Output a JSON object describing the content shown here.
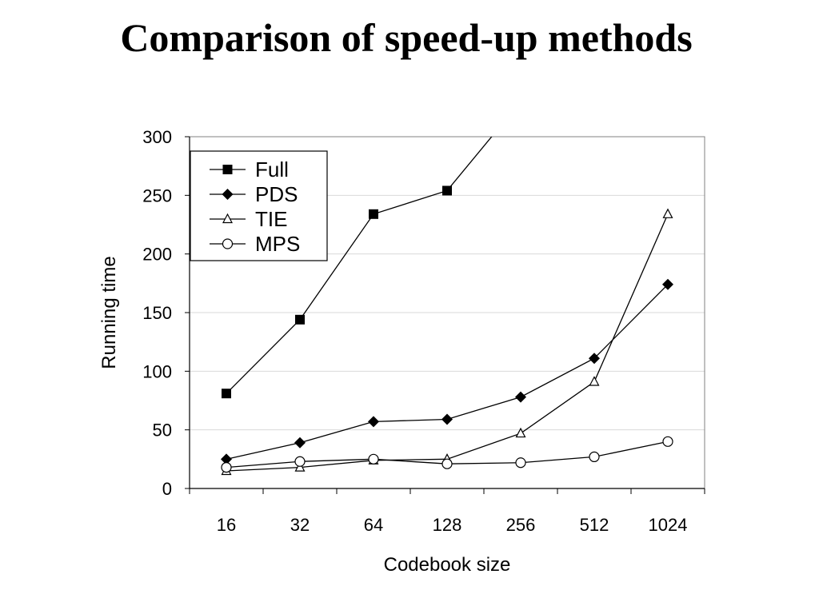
{
  "slide": {
    "title": "Comparison of speed-up methods"
  },
  "chart_data": {
    "type": "line",
    "title": "",
    "xlabel": "Codebook size",
    "ylabel": "Running time",
    "categories": [
      "16",
      "32",
      "64",
      "128",
      "256",
      "512",
      "1024"
    ],
    "ylim": [
      0,
      300
    ],
    "yticks": [
      "0",
      "50",
      "100",
      "150",
      "200",
      "250",
      "300"
    ],
    "grid": true,
    "legend_position": "top-left",
    "series": [
      {
        "name": "Full",
        "marker": "filled-square",
        "values": [
          81,
          144,
          234,
          254,
          330,
          null,
          null
        ]
      },
      {
        "name": "PDS",
        "marker": "filled-diamond",
        "values": [
          25,
          39,
          57,
          59,
          78,
          111,
          174
        ]
      },
      {
        "name": "TIE",
        "marker": "open-triangle",
        "values": [
          15,
          18,
          24,
          25,
          47,
          91,
          234
        ]
      },
      {
        "name": "MPS",
        "marker": "open-circle",
        "values": [
          18,
          23,
          25,
          21,
          22,
          27,
          40
        ]
      }
    ]
  }
}
